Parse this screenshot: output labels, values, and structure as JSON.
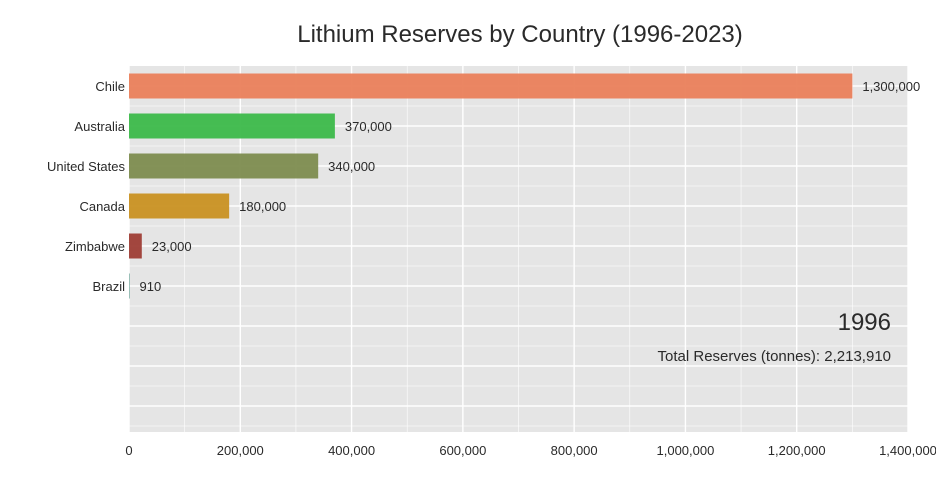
{
  "chart_data": {
    "type": "bar",
    "orientation": "horizontal",
    "title": "Lithium Reserves by Country (1996-2023)",
    "xlabel": "",
    "ylabel": "",
    "xlim": [
      0,
      1400000
    ],
    "x_ticks": [
      0,
      200000,
      400000,
      600000,
      800000,
      1000000,
      1200000,
      1400000
    ],
    "x_tick_labels": [
      "0",
      "200,000",
      "400,000",
      "600,000",
      "800,000",
      "1,000,000",
      "1,200,000",
      "1,400,000"
    ],
    "grid": true,
    "categories": [
      "Chile",
      "Australia",
      "United States",
      "Canada",
      "Zimbabwe",
      "Brazil"
    ],
    "values": [
      1300000,
      370000,
      340000,
      180000,
      23000,
      910
    ],
    "value_labels": [
      "1,300,000",
      "370,000",
      "340,000",
      "180,000",
      "23,000",
      "910"
    ],
    "colors": [
      "#ea7f5b",
      "#3cb94a",
      "#7d8c4f",
      "#c99122",
      "#9e3d35",
      "#3e8a7a"
    ],
    "annotations": {
      "year": "1996",
      "total": "Total Reserves (tonnes): 2,213,910"
    }
  },
  "theme": {
    "plot_background": "#e5e5e5",
    "grid_color": "#ffffff",
    "text_color": "#2a2a2a"
  }
}
